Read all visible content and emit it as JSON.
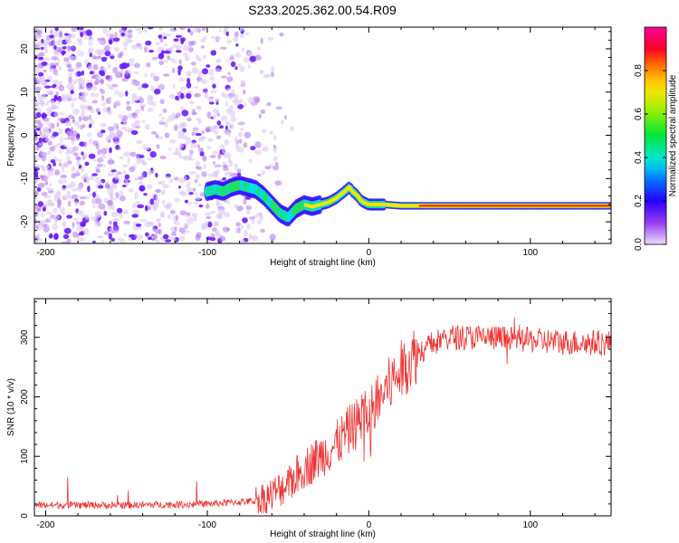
{
  "title": "S233.2025.362.00.54.R09",
  "chart_data": [
    {
      "type": "heatmap",
      "xlabel": "Height of straight line (km)",
      "ylabel": "Frequency (Hz)",
      "xlim": [
        -207,
        150
      ],
      "ylim": [
        -25,
        25
      ],
      "xticks": [
        -200,
        -100,
        0,
        100
      ],
      "yticks": [
        -20,
        -10,
        0,
        10,
        20
      ],
      "colorbar": {
        "label": "Normalized spectral amplitude",
        "range": [
          0,
          1
        ],
        "ticks": [
          "0.0",
          "0.2",
          "0.4",
          "0.6",
          "0.8"
        ]
      },
      "ridge": {
        "x": [
          -100,
          -95,
          -90,
          -85,
          -80,
          -75,
          -70,
          -65,
          -60,
          -55,
          -50,
          -45,
          -40,
          -35,
          -30,
          -25,
          -20,
          -15,
          -12,
          -10,
          -7,
          -5,
          -3,
          0,
          5,
          10,
          20,
          30,
          50,
          100,
          150
        ],
        "y": [
          -13,
          -12.5,
          -13,
          -12,
          -11.5,
          -12,
          -12.5,
          -14,
          -16,
          -18,
          -19,
          -17,
          -16,
          -16.5,
          -16,
          -15.5,
          -14.5,
          -13,
          -12,
          -13,
          -14,
          -15,
          -15.5,
          -16,
          -16,
          -16,
          -16.3,
          -16.3,
          -16.3,
          -16.3,
          -16.3
        ]
      }
    },
    {
      "type": "line",
      "xlabel": "Height of straight line (km)",
      "ylabel": "SNR (10 * v/v)",
      "xlim": [
        -207,
        150
      ],
      "ylim": [
        0,
        365
      ],
      "xticks": [
        -200,
        -100,
        0,
        100
      ],
      "yticks": [
        0,
        100,
        200,
        300
      ],
      "color": "#ee3333",
      "series": [
        {
          "x": [
            -207,
            -150,
            -100,
            -70,
            -60,
            -50,
            -40,
            -30,
            -20,
            -10,
            0,
            10,
            20,
            30,
            40,
            50,
            70,
            100,
            120,
            150
          ],
          "values": [
            18,
            18,
            20,
            25,
            35,
            55,
            80,
            100,
            120,
            150,
            170,
            210,
            245,
            275,
            290,
            300,
            300,
            295,
            292,
            290
          ]
        }
      ]
    }
  ]
}
